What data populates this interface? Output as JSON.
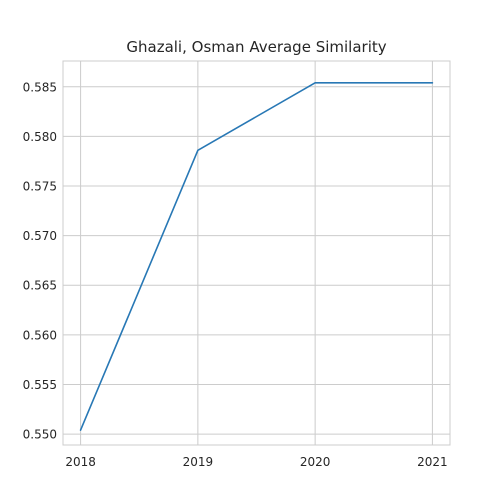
{
  "chart_data": {
    "type": "line",
    "title": "Ghazali, Osman Average Similarity",
    "xlabel": "",
    "ylabel": "",
    "x": [
      "2018",
      "2019",
      "2020",
      "2021"
    ],
    "series": [
      {
        "values": [
          0.5504,
          0.5786,
          0.5854,
          0.5854
        ],
        "color": "#2878b5"
      }
    ],
    "yticks": [
      "0.550",
      "0.555",
      "0.560",
      "0.565",
      "0.570",
      "0.575",
      "0.580",
      "0.585"
    ],
    "xlim": [
      2017.85,
      2021.15
    ],
    "ylim": [
      0.5489,
      0.5876
    ],
    "grid": true,
    "legend": "none"
  }
}
